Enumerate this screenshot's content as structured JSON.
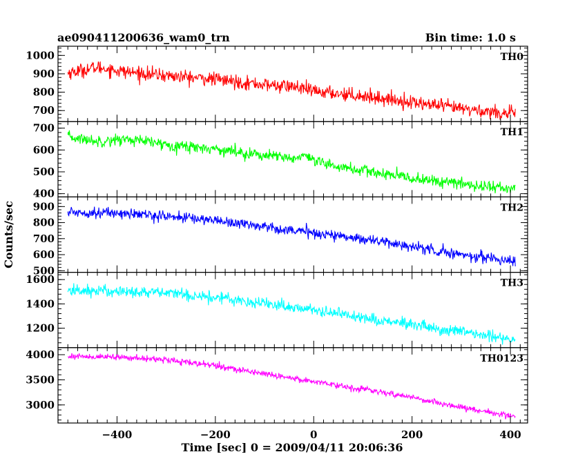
{
  "header": {
    "title": "ae090411200636_wam0_trn",
    "bin_time": "Bin time: 1.0 s"
  },
  "chart_data": {
    "type": "line",
    "xlabel": "Time [sec] 0 = 2009/04/11 20:06:36",
    "ylabel": "Counts/sec",
    "xlim": [
      -520,
      435
    ],
    "x_start": -500,
    "x_end": 410,
    "x_step": 1,
    "xticks": [
      -400,
      -200,
      0,
      200,
      400
    ],
    "xtick_labels": [
      "−400",
      "−200",
      "0",
      "200",
      "400"
    ],
    "grid": false,
    "panels": [
      {
        "label": "TH0",
        "color": "#ff0000",
        "ylim": [
          640,
          1050
        ],
        "yticks": [
          700,
          800,
          900,
          1000
        ],
        "ytick_labels": [
          "700",
          "800",
          "900",
          "1000"
        ],
        "trend_x": [
          -500,
          -440,
          -380,
          -300,
          -200,
          -100,
          -40,
          0,
          100,
          200,
          300,
          410
        ],
        "trend_y": [
          905,
          935,
          910,
          890,
          870,
          840,
          830,
          805,
          780,
          745,
          710,
          680
        ],
        "noise": 34
      },
      {
        "label": "TH1",
        "color": "#00ff00",
        "ylim": [
          385,
          730
        ],
        "yticks": [
          400,
          500,
          600,
          700
        ],
        "ytick_labels": [
          "400",
          "500",
          "600",
          "700"
        ],
        "trend_x": [
          -500,
          -440,
          -380,
          -300,
          -200,
          -100,
          -40,
          -20,
          0,
          100,
          200,
          300,
          410
        ],
        "trend_y": [
          660,
          640,
          650,
          625,
          605,
          575,
          560,
          575,
          545,
          505,
          470,
          445,
          420
        ],
        "noise": 24
      },
      {
        "label": "TH2",
        "color": "#0000ff",
        "ylim": [
          490,
          960
        ],
        "yticks": [
          500,
          600,
          700,
          800,
          900
        ],
        "ytick_labels": [
          "500",
          "600",
          "700",
          "800",
          "900"
        ],
        "trend_x": [
          -500,
          -400,
          -300,
          -200,
          -100,
          0,
          100,
          200,
          300,
          410
        ],
        "trend_y": [
          865,
          860,
          840,
          815,
          775,
          735,
          700,
          650,
          600,
          560
        ],
        "noise": 30
      },
      {
        "label": "TH3",
        "color": "#00ffff",
        "ylim": [
          1040,
          1660
        ],
        "yticks": [
          1200,
          1400,
          1600
        ],
        "ytick_labels": [
          "1200",
          "1400",
          "1600"
        ],
        "trend_x": [
          -500,
          -400,
          -300,
          -200,
          -100,
          0,
          100,
          200,
          300,
          410
        ],
        "trend_y": [
          1510,
          1505,
          1490,
          1455,
          1405,
          1350,
          1290,
          1225,
          1165,
          1110
        ],
        "noise": 45
      },
      {
        "label": "TH0123",
        "color": "#ff00ff",
        "ylim": [
          2640,
          4140
        ],
        "yticks": [
          3000,
          3500,
          4000
        ],
        "ytick_labels": [
          "3000",
          "3500",
          "4000"
        ],
        "trend_x": [
          -500,
          -400,
          -300,
          -200,
          -100,
          0,
          100,
          200,
          300,
          410
        ],
        "trend_y": [
          3970,
          3950,
          3900,
          3780,
          3620,
          3470,
          3310,
          3150,
          2950,
          2770
        ],
        "noise": 55
      }
    ]
  }
}
